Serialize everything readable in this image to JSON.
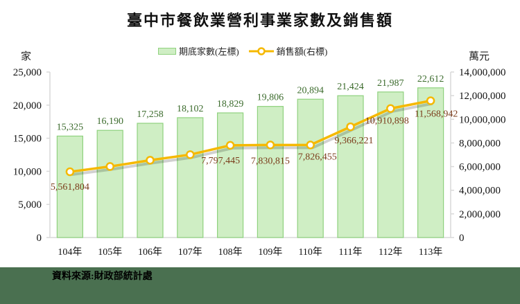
{
  "title": "臺中市餐飲業營利事業家數及銷售額",
  "units": {
    "left": "家",
    "right": "萬元"
  },
  "legend": {
    "bar": "期底家數(左標)",
    "line": "銷售額(右標)"
  },
  "source": "資料來源:財政部統計處",
  "colors": {
    "bar_fill": "#cfeec4",
    "bar_stroke": "#8fd17e",
    "line": "#f5b800",
    "bar_label": "#3b6b2c",
    "line_label": "#7a3b1a",
    "footer": "#4a7050"
  },
  "chart_data": {
    "type": "bar+line",
    "title": "臺中市餐飲業營利事業家數及銷售額",
    "categories": [
      "104年",
      "105年",
      "106年",
      "107年",
      "108年",
      "109年",
      "110年",
      "111年",
      "112年",
      "113年"
    ],
    "series": [
      {
        "name": "期底家數(左標)",
        "type": "bar",
        "axis": "left",
        "values": [
          15325,
          16190,
          17258,
          18102,
          18829,
          19806,
          20894,
          21424,
          21987,
          22612
        ]
      },
      {
        "name": "銷售額(右標)",
        "type": "line",
        "axis": "right",
        "values": [
          5561804,
          6009000,
          6540000,
          7010000,
          7797445,
          7830815,
          7826455,
          9366221,
          10910898,
          11568942
        ],
        "labeled": [
          true,
          false,
          false,
          false,
          true,
          true,
          true,
          true,
          true,
          true
        ]
      }
    ],
    "left_axis": {
      "label": "家",
      "ylim": [
        0,
        25000
      ],
      "ticks": [
        "0",
        "5,000",
        "10,000",
        "15,000",
        "20,000",
        "25,000"
      ]
    },
    "right_axis": {
      "label": "萬元",
      "ylim": [
        0,
        14000000
      ],
      "ticks": [
        "0",
        "2,000,000",
        "4,000,000",
        "6,000,000",
        "8,000,000",
        "10,000,000",
        "12,000,000",
        "14,000,000"
      ]
    },
    "bar_labels": [
      "15,325",
      "16,190",
      "17,258",
      "18,102",
      "18,829",
      "19,806",
      "20,894",
      "21,424",
      "21,987",
      "22,612"
    ],
    "line_labels": [
      "5,561,804",
      "",
      "",
      "",
      "7,797,445",
      "7,830,815",
      "7,826,455",
      "9,366,221",
      "10,910,898",
      "11,568,942"
    ],
    "legend_position": "top",
    "grid": false
  }
}
